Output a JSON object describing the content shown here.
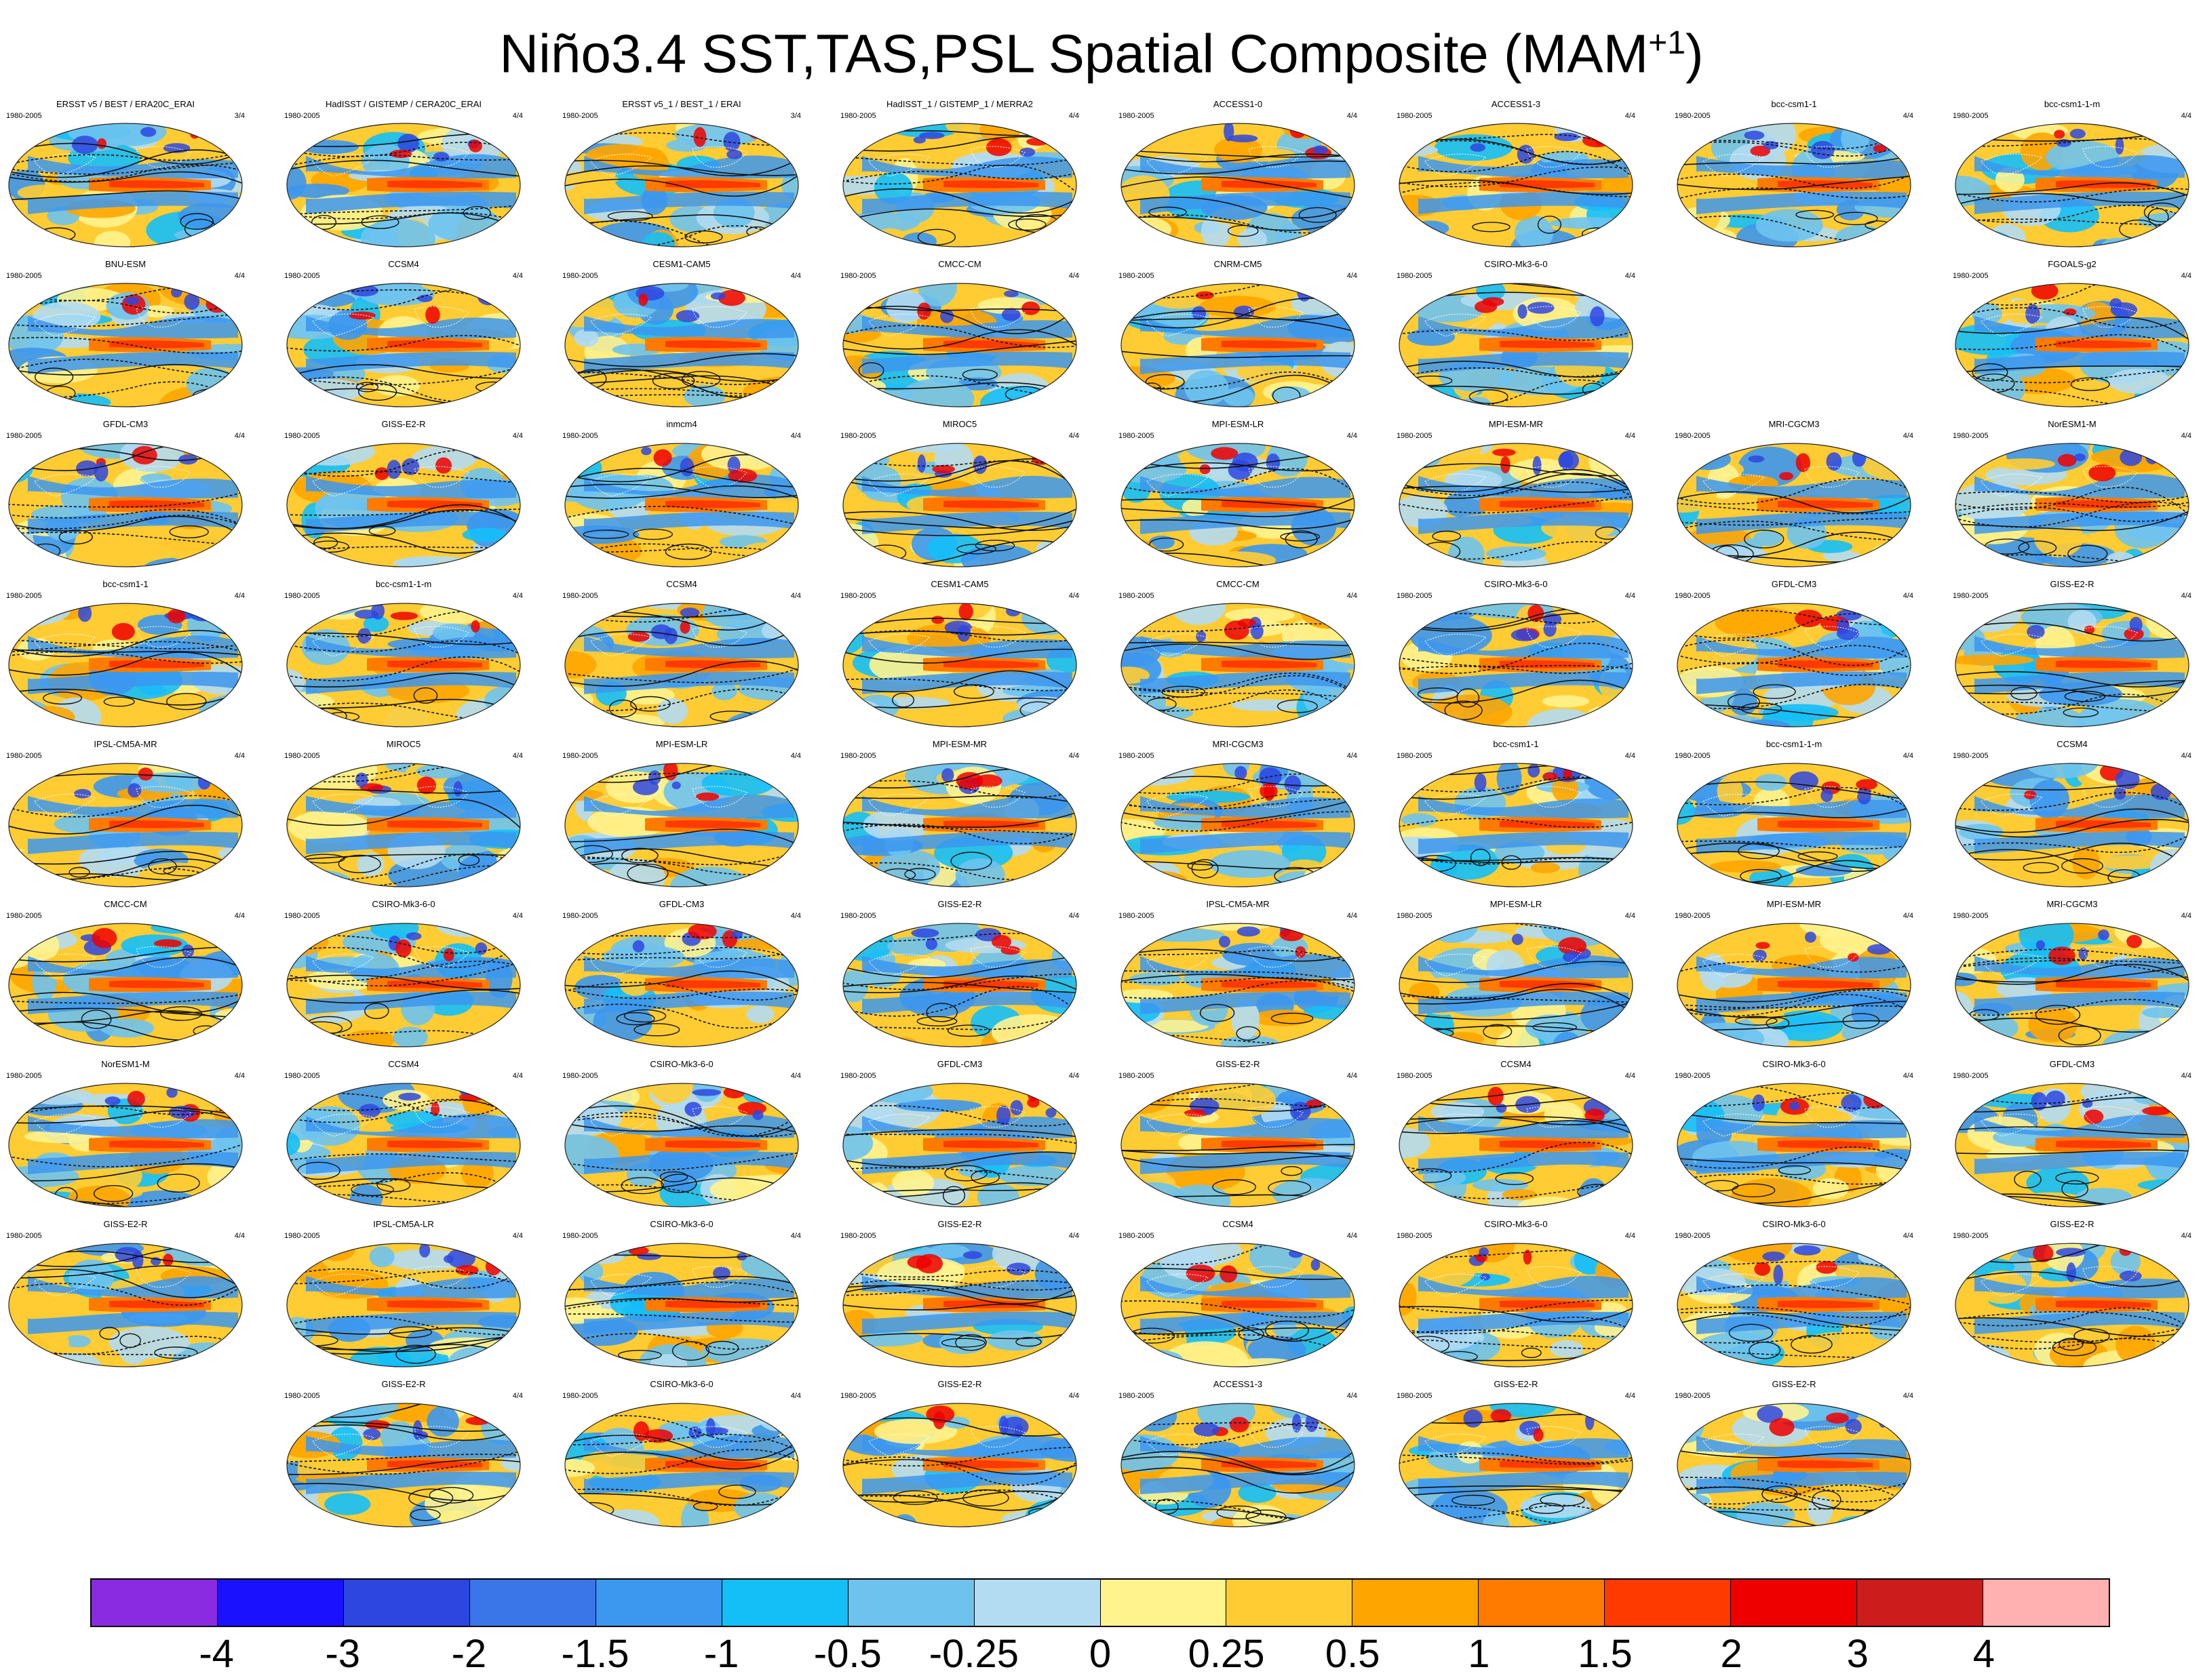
{
  "title": "Niño3.4 SST,TAS,PSL Spatial Composite (MAM",
  "title_sup": "+1",
  "period": "1980-2005",
  "panels": [
    {
      "row": 0,
      "col": 0,
      "title": "ERSST v5 / BEST / ERA20C_ERAI",
      "count": "3/4",
      "v": 0
    },
    {
      "row": 0,
      "col": 1,
      "title": "HadISST / GISTEMP / CERA20C_ERAI",
      "count": "4/4",
      "v": 1
    },
    {
      "row": 0,
      "col": 2,
      "title": "ERSST v5_1 / BEST_1 / ERAI",
      "count": "3/4",
      "v": 2
    },
    {
      "row": 0,
      "col": 3,
      "title": "HadISST_1 / GISTEMP_1 / MERRA2",
      "count": "4/4",
      "v": 3
    },
    {
      "row": 0,
      "col": 4,
      "title": "ACCESS1-0",
      "count": "4/4",
      "v": 4
    },
    {
      "row": 0,
      "col": 5,
      "title": "ACCESS1-3",
      "count": "4/4",
      "v": 5
    },
    {
      "row": 0,
      "col": 6,
      "title": "bcc-csm1-1",
      "count": "4/4",
      "v": 6
    },
    {
      "row": 0,
      "col": 7,
      "title": "bcc-csm1-1-m",
      "count": "4/4",
      "v": 7
    },
    {
      "row": 1,
      "col": 0,
      "title": "BNU-ESM",
      "count": "4/4",
      "v": 8
    },
    {
      "row": 1,
      "col": 1,
      "title": "CCSM4",
      "count": "4/4",
      "v": 9
    },
    {
      "row": 1,
      "col": 2,
      "title": "CESM1-CAM5",
      "count": "4/4",
      "v": 10
    },
    {
      "row": 1,
      "col": 3,
      "title": "CMCC-CM",
      "count": "4/4",
      "v": 11
    },
    {
      "row": 1,
      "col": 4,
      "title": "CNRM-CM5",
      "count": "4/4",
      "v": 12
    },
    {
      "row": 1,
      "col": 5,
      "title": "CSIRO-Mk3-6-0",
      "count": "4/4",
      "v": 13
    },
    {
      "row": 1,
      "col": 7,
      "title": "FGOALS-g2",
      "count": "4/4",
      "v": 14
    },
    {
      "row": 2,
      "col": 0,
      "title": "GFDL-CM3",
      "count": "4/4",
      "v": 15
    },
    {
      "row": 2,
      "col": 1,
      "title": "GISS-E2-R",
      "count": "4/4",
      "v": 16
    },
    {
      "row": 2,
      "col": 2,
      "title": "inmcm4",
      "count": "4/4",
      "v": 17
    },
    {
      "row": 2,
      "col": 3,
      "title": "MIROC5",
      "count": "4/4",
      "v": 18
    },
    {
      "row": 2,
      "col": 4,
      "title": "MPI-ESM-LR",
      "count": "4/4",
      "v": 19
    },
    {
      "row": 2,
      "col": 5,
      "title": "MPI-ESM-MR",
      "count": "4/4",
      "v": 20
    },
    {
      "row": 2,
      "col": 6,
      "title": "MRI-CGCM3",
      "count": "4/4",
      "v": 21
    },
    {
      "row": 2,
      "col": 7,
      "title": "NorESM1-M",
      "count": "4/4",
      "v": 22
    },
    {
      "row": 3,
      "col": 0,
      "title": "bcc-csm1-1",
      "count": "4/4",
      "v": 23
    },
    {
      "row": 3,
      "col": 1,
      "title": "bcc-csm1-1-m",
      "count": "4/4",
      "v": 24
    },
    {
      "row": 3,
      "col": 2,
      "title": "CCSM4",
      "count": "4/4",
      "v": 25
    },
    {
      "row": 3,
      "col": 3,
      "title": "CESM1-CAM5",
      "count": "4/4",
      "v": 26
    },
    {
      "row": 3,
      "col": 4,
      "title": "CMCC-CM",
      "count": "4/4",
      "v": 27
    },
    {
      "row": 3,
      "col": 5,
      "title": "CSIRO-Mk3-6-0",
      "count": "4/4",
      "v": 28
    },
    {
      "row": 3,
      "col": 6,
      "title": "GFDL-CM3",
      "count": "4/4",
      "v": 29
    },
    {
      "row": 3,
      "col": 7,
      "title": "GISS-E2-R",
      "count": "4/4",
      "v": 30
    },
    {
      "row": 4,
      "col": 0,
      "title": "IPSL-CM5A-MR",
      "count": "4/4",
      "v": 31
    },
    {
      "row": 4,
      "col": 1,
      "title": "MIROC5",
      "count": "4/4",
      "v": 32
    },
    {
      "row": 4,
      "col": 2,
      "title": "MPI-ESM-LR",
      "count": "4/4",
      "v": 33
    },
    {
      "row": 4,
      "col": 3,
      "title": "MPI-ESM-MR",
      "count": "4/4",
      "v": 34
    },
    {
      "row": 4,
      "col": 4,
      "title": "MRI-CGCM3",
      "count": "4/4",
      "v": 35
    },
    {
      "row": 4,
      "col": 5,
      "title": "bcc-csm1-1",
      "count": "4/4",
      "v": 36
    },
    {
      "row": 4,
      "col": 6,
      "title": "bcc-csm1-1-m",
      "count": "4/4",
      "v": 37
    },
    {
      "row": 4,
      "col": 7,
      "title": "CCSM4",
      "count": "4/4",
      "v": 38
    },
    {
      "row": 5,
      "col": 0,
      "title": "CMCC-CM",
      "count": "4/4",
      "v": 39
    },
    {
      "row": 5,
      "col": 1,
      "title": "CSIRO-Mk3-6-0",
      "count": "4/4",
      "v": 40
    },
    {
      "row": 5,
      "col": 2,
      "title": "GFDL-CM3",
      "count": "4/4",
      "v": 41
    },
    {
      "row": 5,
      "col": 3,
      "title": "GISS-E2-R",
      "count": "4/4",
      "v": 42
    },
    {
      "row": 5,
      "col": 4,
      "title": "IPSL-CM5A-MR",
      "count": "4/4",
      "v": 43
    },
    {
      "row": 5,
      "col": 5,
      "title": "MPI-ESM-LR",
      "count": "4/4",
      "v": 44
    },
    {
      "row": 5,
      "col": 6,
      "title": "MPI-ESM-MR",
      "count": "4/4",
      "v": 45
    },
    {
      "row": 5,
      "col": 7,
      "title": "MRI-CGCM3",
      "count": "4/4",
      "v": 46
    },
    {
      "row": 6,
      "col": 0,
      "title": "NorESM1-M",
      "count": "4/4",
      "v": 47
    },
    {
      "row": 6,
      "col": 1,
      "title": "CCSM4",
      "count": "4/4",
      "v": 48
    },
    {
      "row": 6,
      "col": 2,
      "title": "CSIRO-Mk3-6-0",
      "count": "4/4",
      "v": 49
    },
    {
      "row": 6,
      "col": 3,
      "title": "GFDL-CM3",
      "count": "4/4",
      "v": 50
    },
    {
      "row": 6,
      "col": 4,
      "title": "GISS-E2-R",
      "count": "4/4",
      "v": 51
    },
    {
      "row": 6,
      "col": 5,
      "title": "CCSM4",
      "count": "4/4",
      "v": 52
    },
    {
      "row": 6,
      "col": 6,
      "title": "CSIRO-Mk3-6-0",
      "count": "4/4",
      "v": 53
    },
    {
      "row": 6,
      "col": 7,
      "title": "GFDL-CM3",
      "count": "4/4",
      "v": 54
    },
    {
      "row": 7,
      "col": 0,
      "title": "GISS-E2-R",
      "count": "4/4",
      "v": 55
    },
    {
      "row": 7,
      "col": 1,
      "title": "IPSL-CM5A-LR",
      "count": "4/4",
      "v": 56
    },
    {
      "row": 7,
      "col": 2,
      "title": "CSIRO-Mk3-6-0",
      "count": "4/4",
      "v": 57
    },
    {
      "row": 7,
      "col": 3,
      "title": "GISS-E2-R",
      "count": "4/4",
      "v": 58
    },
    {
      "row": 7,
      "col": 4,
      "title": "CCSM4",
      "count": "4/4",
      "v": 59
    },
    {
      "row": 7,
      "col": 5,
      "title": "CSIRO-Mk3-6-0",
      "count": "4/4",
      "v": 60
    },
    {
      "row": 7,
      "col": 6,
      "title": "CSIRO-Mk3-6-0",
      "count": "4/4",
      "v": 61
    },
    {
      "row": 7,
      "col": 7,
      "title": "GISS-E2-R",
      "count": "4/4",
      "v": 62
    },
    {
      "row": 8,
      "col": 1,
      "title": "GISS-E2-R",
      "count": "4/4",
      "v": 63
    },
    {
      "row": 8,
      "col": 2,
      "title": "CSIRO-Mk3-6-0",
      "count": "4/4",
      "v": 64
    },
    {
      "row": 8,
      "col": 3,
      "title": "GISS-E2-R",
      "count": "4/4",
      "v": 65
    },
    {
      "row": 8,
      "col": 4,
      "title": "ACCESS1-3",
      "count": "4/4",
      "v": 66
    },
    {
      "row": 8,
      "col": 5,
      "title": "GISS-E2-R",
      "count": "4/4",
      "v": 67
    },
    {
      "row": 8,
      "col": 6,
      "title": "GISS-E2-R",
      "count": "4/4",
      "v": 68
    }
  ],
  "chart_data": {
    "type": "heatmap",
    "title": "Niño3.4 SST,TAS,PSL Spatial Composite (MAM+1)",
    "period": "1980-2005",
    "colorbar": {
      "labels": [
        "-4",
        "-3",
        "-2",
        "-1.5",
        "-1",
        "-0.5",
        "-0.25",
        "0",
        "0.25",
        "0.5",
        "1",
        "1.5",
        "2",
        "3",
        "4"
      ],
      "levels": [
        -4,
        -3,
        -2,
        -1.5,
        -1,
        -0.5,
        -0.25,
        0,
        0.25,
        0.5,
        1,
        1.5,
        2,
        3,
        4
      ],
      "colors": [
        "#8a2be2",
        "#1a12ff",
        "#2e46e0",
        "#3a76e8",
        "#3c97ee",
        "#14bff8",
        "#6ec3ee",
        "#b3dcf2",
        "#fff38e",
        "#ffcc33",
        "#ffa500",
        "#ff7b00",
        "#ff3a00",
        "#ee0000",
        "#cc1c1c",
        "#ffb0b0"
      ]
    },
    "panel_count": 69,
    "colorbar_box_count": 16
  }
}
